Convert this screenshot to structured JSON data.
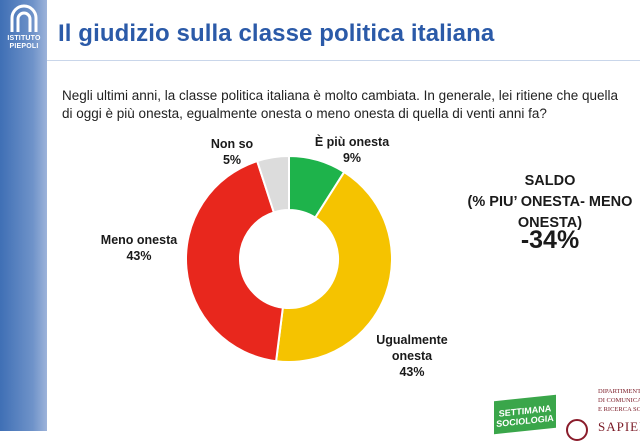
{
  "logo": {
    "line1": "ISTITUTO",
    "line2": "PIEPOLI"
  },
  "header": {
    "title": "Il giudizio sulla classe politica italiana"
  },
  "question": "Negli ultimi anni, la classe politica italiana è molto cambiata. In generale, lei ritiene che quella di oggi è più onesta, egualmente onesta o meno onesta di quella di venti anni fa?",
  "saldo": {
    "line1": "SALDO",
    "line2": "(% PIU’ ONESTA- MENO",
    "line3": "ONESTA)",
    "value": "-34%"
  },
  "footer": {
    "badge_line1": "SETTIMANA",
    "badge_line2": "SOCIOLOGIA",
    "dept_line1": "DIPARTIMENTO",
    "dept_line2": "DI COMUNICA",
    "dept_line3": "E RICERCA SOCI",
    "university": "SAPIEN"
  },
  "colors": {
    "sidebar": "#3f6fb5",
    "title": "#2b5aa8",
    "piu_onesta": "#1eb34b",
    "ugualmente": "#f5c300",
    "meno_onesta": "#e8271d",
    "non_so": "#dcdcdc"
  },
  "chart_data": {
    "type": "pie",
    "variant": "donut",
    "slices": [
      {
        "label": "È più onesta",
        "value": 9,
        "value_label": "9%",
        "color": "#1eb34b"
      },
      {
        "label": "Ugualmente onesta",
        "value": 43,
        "value_label": "43%",
        "color": "#f5c300"
      },
      {
        "label": "Meno onesta",
        "value": 43,
        "value_label": "43%",
        "color": "#e8271d"
      },
      {
        "label": "Non so",
        "value": 5,
        "value_label": "5%",
        "color": "#dcdcdc"
      }
    ]
  }
}
